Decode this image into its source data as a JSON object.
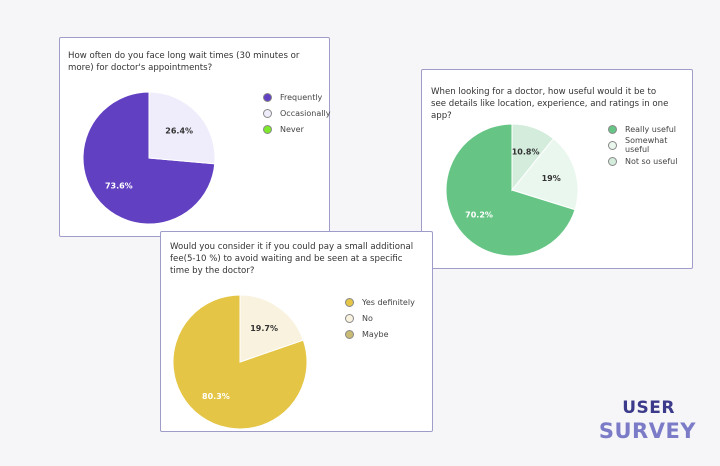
{
  "brand": {
    "line1": "USER",
    "line2": "SURVEY"
  },
  "chart_data": [
    {
      "type": "pie",
      "title": "How often do you face long wait times (30 minutes or more) for doctor's appointments?",
      "labels": [
        "Frequently",
        "Occasionally",
        "Never"
      ],
      "values": [
        73.6,
        26.4,
        0
      ],
      "value_labels": [
        "73.6%",
        "26.4%",
        ""
      ],
      "colors": [
        "#6240c2",
        "#efedfb",
        "#7ee82c"
      ],
      "legend_position": "right"
    },
    {
      "type": "pie",
      "title": "When looking for a doctor, how useful would it be to see details like location, experience, and ratings in one app?",
      "labels": [
        "Really useful",
        "Somewhat useful",
        "Not so useful"
      ],
      "values": [
        70.2,
        19,
        10.8
      ],
      "value_labels": [
        "70.2%",
        "19%",
        "10.8%"
      ],
      "colors": [
        "#66c585",
        "#eaf7ee",
        "#d3ecdc"
      ],
      "legend_position": "right"
    },
    {
      "type": "pie",
      "title": "Would you consider it if you could pay a small additional fee(5-10 %) to avoid waiting and be seen at a specific time by the doctor?",
      "labels": [
        "Yes definitely",
        "No",
        "Maybe"
      ],
      "values": [
        80.3,
        19.7,
        0
      ],
      "value_labels": [
        "80.3%",
        "19.7%",
        ""
      ],
      "colors": [
        "#e4c545",
        "#f8f2de",
        "#c9bb74"
      ],
      "legend_position": "right"
    }
  ]
}
